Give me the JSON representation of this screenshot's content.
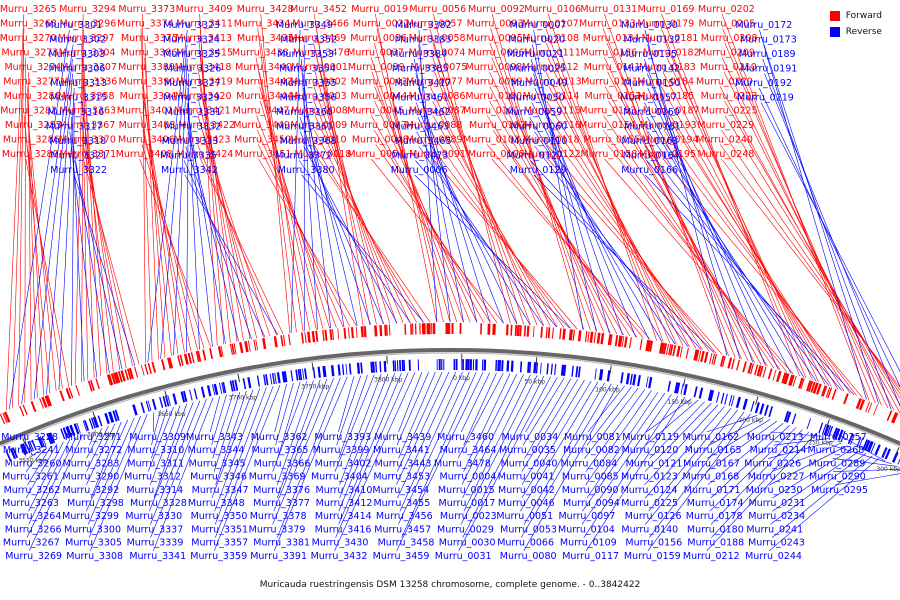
{
  "caption": "Muricauda ruestringensis DSM 13258 chromosome, complete genome. - 0..3842422",
  "legend": [
    {
      "label": "Forward",
      "color": "#ff0000"
    },
    {
      "label": "Reverse",
      "color": "#0000ff"
    }
  ],
  "colors": {
    "forward": "#ff0000",
    "reverse": "#0000ff",
    "backbone": "#666666"
  },
  "map": {
    "ticks": [
      "3550 kbp",
      "3600 kbp",
      "3650 kbp",
      "3700 kbp",
      "3750 kbp",
      "3800 kbp",
      "0 kbp",
      "50 kbp",
      "100 kbp",
      "150 kbp",
      "200 kbp",
      "250 kbp",
      "300 kbp"
    ],
    "forward_upper": [
      "Murru_3265",
      "Murru_3268",
      "Murru_3270",
      "Murru_3273",
      "Murru_3274",
      "Murru_3277",
      "Murru_3280",
      "Murru_3282",
      "Murru_3285",
      "Murru_3286",
      "Murru_3289",
      "Murru_3294",
      "Murru_3296",
      "Murru_3297",
      "Murru_3304",
      "Murru_3307",
      "Murru_3336",
      "Murru_3358",
      "Murru_3363",
      "Murru_3367",
      "Murru_3370",
      "Murru_3371",
      "Murru_3373",
      "Murru_3374",
      "Murru_3375",
      "Murru_3386",
      "Murru_3389",
      "Murru_3390",
      "Murru_3394",
      "Murru_3401",
      "Murru_3403",
      "Murru_3406",
      "Murru_3408",
      "Murru_3409",
      "Murru_3411",
      "Murru_3413",
      "Murru_3415",
      "Murru_3418",
      "Murru_3419",
      "Murru_3420",
      "Murru_3421",
      "Murru_3422",
      "Murru_3423",
      "Murru_3424",
      "Murru_3428",
      "Murru_3434",
      "Murru_3435",
      "Murru_3438",
      "Murru_3440",
      "Murru_3442",
      "Murru_3444",
      "Murru_3447",
      "Murru_3449",
      "Murru_3450",
      "Murru_3451",
      "Murru_3452",
      "Murru_3466",
      "Murru_3469",
      "Murru_3476",
      "Murru_0001",
      "Murru_0002",
      "Murru_0003",
      "Murru_0008",
      "Murru_0009",
      "Murru_0010",
      "Murru_0018",
      "Murru_0019",
      "Murru_0022",
      "Murru_0036",
      "Murru_0037",
      "Murru_0039",
      "Murru_0043",
      "Murru_0044",
      "Murru_0045",
      "Murru_0047",
      "Murru_0048",
      "Murru_0054",
      "Murru_0056",
      "Murru_0057",
      "Murru_0058",
      "Murru_0074",
      "Murru_0075",
      "Murru_0077",
      "Murru_0086",
      "Murru_0087",
      "Murru_0088",
      "Murru_0089",
      "Murru_0091",
      "Murru_0092",
      "Murru_0093",
      "Murru_0095",
      "Murru_0096",
      "Murru_0098",
      "Murru_0099",
      "Murru_0100",
      "Murru_0101",
      "Murru_0102",
      "Murru_0103",
      "Murru_0105",
      "Murru_0106",
      "Murru_0107",
      "Murru_0108",
      "Murru_0111",
      "Murru_0112",
      "Murru_0113",
      "Murru_0114",
      "Murru_0115",
      "Murru_0116",
      "Murru_0118",
      "Murru_0122",
      "Murru_0131",
      "Murru_0133",
      "Murru_0134",
      "Murru_0136",
      "Murru_0141",
      "Murru_0151",
      "Murru_0152",
      "Murru_0153",
      "Murru_0154",
      "Murru_0155",
      "Murru_0158",
      "Murru_0169",
      "Murru_0179",
      "Murru_0181",
      "Murru_0182",
      "Murru_0183",
      "Murru_0184",
      "Murru_0185",
      "Murru_0187",
      "Murru_0193",
      "Murru_0194",
      "Murru_0195",
      "Murru_0202",
      "Murru_0205",
      "Murru_0208",
      "Murru_0209",
      "Murru_0210",
      "Murru_0220",
      "Murru_0223",
      "Murru_0225",
      "Murru_0229",
      "Murru_0240",
      "Murru_0248"
    ],
    "reverse_upper": [
      "Murru_3301",
      "Murru_3302",
      "Murru_3303",
      "Murru_3306",
      "Murru_3313",
      "Murru_3315",
      "Murru_3316",
      "Murru_3317",
      "Murru_3318",
      "Murru_3321",
      "Murru_3322",
      "Murru_3323",
      "Murru_3324",
      "Murru_3325",
      "Murru_3326",
      "Murru_3327",
      "Murru_3329",
      "Murru_3331",
      "Murru_3332",
      "Murru_3333",
      "Murru_3335",
      "Murru_3342",
      "Murru_3349",
      "Murru_3352",
      "Murru_3353",
      "Murru_3354",
      "Murru_3355",
      "Murru_3356",
      "Murru_3360",
      "Murru_3361",
      "Murru_3368",
      "Murru_3372",
      "Murru_3380",
      "Murru_3382",
      "Murru_3383",
      "Murru_3384",
      "Murru_3385",
      "Murru_3417",
      "Murru_3461",
      "Murru_3462",
      "Murru_3463",
      "Murru_3465",
      "Murru_3473",
      "Murru_0006",
      "Murru_0007",
      "Murru_0020",
      "Murru_0021",
      "Murru_0025",
      "Murru_0049",
      "Murru_0050",
      "Murru_0059",
      "Murru_0060",
      "Murru_0110",
      "Murru_0127",
      "Murru_0129",
      "Murru_0130",
      "Murru_0132",
      "Murru_0135",
      "Murru_0142",
      "Murru_0150",
      "Murru_0157",
      "Murru_0160",
      "Murru_0161",
      "Murru_0163",
      "Murru_0164",
      "Murru_0166",
      "Murru_0172",
      "Murru_0173",
      "Murru_0189",
      "Murru_0191",
      "Murru_0192",
      "Murru_0219"
    ],
    "reverse_lower": [
      "Murru_3228",
      "Murru_3241",
      "Murru_3260",
      "Murru_3261",
      "Murru_3262",
      "Murru_3263",
      "Murru_3264",
      "Murru_3266",
      "Murru_3267",
      "Murru_3269",
      "Murru_3271",
      "Murru_3272",
      "Murru_3283",
      "Murru_3290",
      "Murru_3292",
      "Murru_3298",
      "Murru_3299",
      "Murru_3300",
      "Murru_3305",
      "Murru_3308",
      "Murru_3309",
      "Murru_3310",
      "Murru_3311",
      "Murru_3312",
      "Murru_3314",
      "Murru_3328",
      "Murru_3330",
      "Murru_3337",
      "Murru_3339",
      "Murru_3341",
      "Murru_3343",
      "Murru_3344",
      "Murru_3345",
      "Murru_3346",
      "Murru_3347",
      "Murru_3348",
      "Murru_3350",
      "Murru_3351",
      "Murru_3357",
      "Murru_3359",
      "Murru_3362",
      "Murru_3365",
      "Murru_3366",
      "Murru_3369",
      "Murru_3376",
      "Murru_3377",
      "Murru_3378",
      "Murru_3379",
      "Murru_3381",
      "Murru_3391",
      "Murru_3393",
      "Murru_3399",
      "Murru_3402",
      "Murru_3404",
      "Murru_3410",
      "Murru_3412",
      "Murru_3414",
      "Murru_3416",
      "Murru_3430",
      "Murru_3432",
      "Murru_3439",
      "Murru_3441",
      "Murru_3443",
      "Murru_3453",
      "Murru_3454",
      "Murru_3455",
      "Murru_3456",
      "Murru_3457",
      "Murru_3458",
      "Murru_3459",
      "Murru_3460",
      "Murru_3464",
      "Murru_3478",
      "Murru_0004",
      "Murru_0015",
      "Murru_0017",
      "Murru_0023",
      "Murru_0029",
      "Murru_0030",
      "Murru_0031",
      "Murru_0034",
      "Murru_0035",
      "Murru_0040",
      "Murru_0041",
      "Murru_0042",
      "Murru_0046",
      "Murru_0051",
      "Murru_0053",
      "Murru_0066",
      "Murru_0080",
      "Murru_0081",
      "Murru_0082",
      "Murru_0084",
      "Murru_0085",
      "Murru_0090",
      "Murru_0094",
      "Murru_0097",
      "Murru_0104",
      "Murru_0109",
      "Murru_0117",
      "Murru_0119",
      "Murru_0120",
      "Murru_0121",
      "Murru_0123",
      "Murru_0124",
      "Murru_0125",
      "Murru_0126",
      "Murru_0140",
      "Murru_0156",
      "Murru_0159",
      "Murru_0162",
      "Murru_0165",
      "Murru_0167",
      "Murru_0168",
      "Murru_0171",
      "Murru_0174",
      "Murru_0178",
      "Murru_0180",
      "Murru_0188",
      "Murru_0212",
      "Murru_0213",
      "Murru_0214",
      "Murru_0226",
      "Murru_0227",
      "Murru_0230",
      "Murru_0231",
      "Murru_0234",
      "Murru_0241",
      "Murru_0243",
      "Murru_0244",
      "Murru_0257",
      "Murru_0268",
      "Murru_0289",
      "Murru_0290",
      "Murru_0295"
    ]
  }
}
